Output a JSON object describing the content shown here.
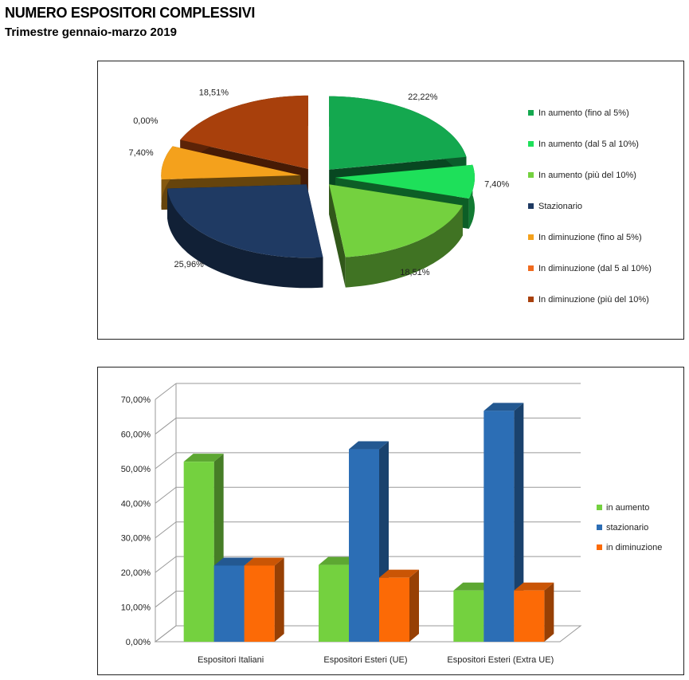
{
  "header": {
    "title": "NUMERO ESPOSITORI COMPLESSIVI",
    "subtitle": "Trimestre gennaio-marzo 2019"
  },
  "chart_data": [
    {
      "type": "pie",
      "style": "3d-exploded",
      "legend_position": "right",
      "slices": [
        {
          "label": "In aumento (fino al 5%)",
          "value": 22.22,
          "value_label": "22,22%",
          "color": "#14a84f"
        },
        {
          "label": "In aumento (dal 5 al 10%)",
          "value": 7.4,
          "value_label": "7,40%",
          "color": "#1ee05a"
        },
        {
          "label": "In aumento (più del 10%)",
          "value": 18.51,
          "value_label": "18,51%",
          "color": "#74d13f"
        },
        {
          "label": "Stazionario",
          "value": 25.96,
          "value_label": "25,96%",
          "color": "#1f3a63"
        },
        {
          "label": "In diminuzione (fino al 5%)",
          "value": 7.4,
          "value_label": "7,40%",
          "color": "#f4a11c"
        },
        {
          "label": "In diminuzione (dal 5 al 10%)",
          "value": 0.0,
          "value_label": "0,00%",
          "color": "#f06a1e"
        },
        {
          "label": "In diminuzione (più del 10%)",
          "value": 18.51,
          "value_label": "18,51%",
          "color": "#a8400c"
        }
      ]
    },
    {
      "type": "bar",
      "style": "3d-clustered",
      "legend_position": "right",
      "categories": [
        "Espositori Italiani",
        "Espositori Esteri (UE)",
        "Espositori Esteri (Extra UE)"
      ],
      "series": [
        {
          "name": "in aumento",
          "values": [
            52,
            22.2,
            14.8
          ],
          "color": "#74d13f"
        },
        {
          "name": "stazionario",
          "values": [
            22,
            55.6,
            66.7
          ],
          "color": "#2c6eb5"
        },
        {
          "name": "in diminuzione",
          "values": [
            22,
            18.5,
            14.8
          ],
          "color": "#fc6a06"
        }
      ],
      "ylim": [
        0,
        70
      ],
      "y_ticks": [
        "0,00%",
        "10,00%",
        "20,00%",
        "30,00%",
        "40,00%",
        "50,00%",
        "60,00%",
        "70,00%"
      ],
      "grid": true
    }
  ]
}
